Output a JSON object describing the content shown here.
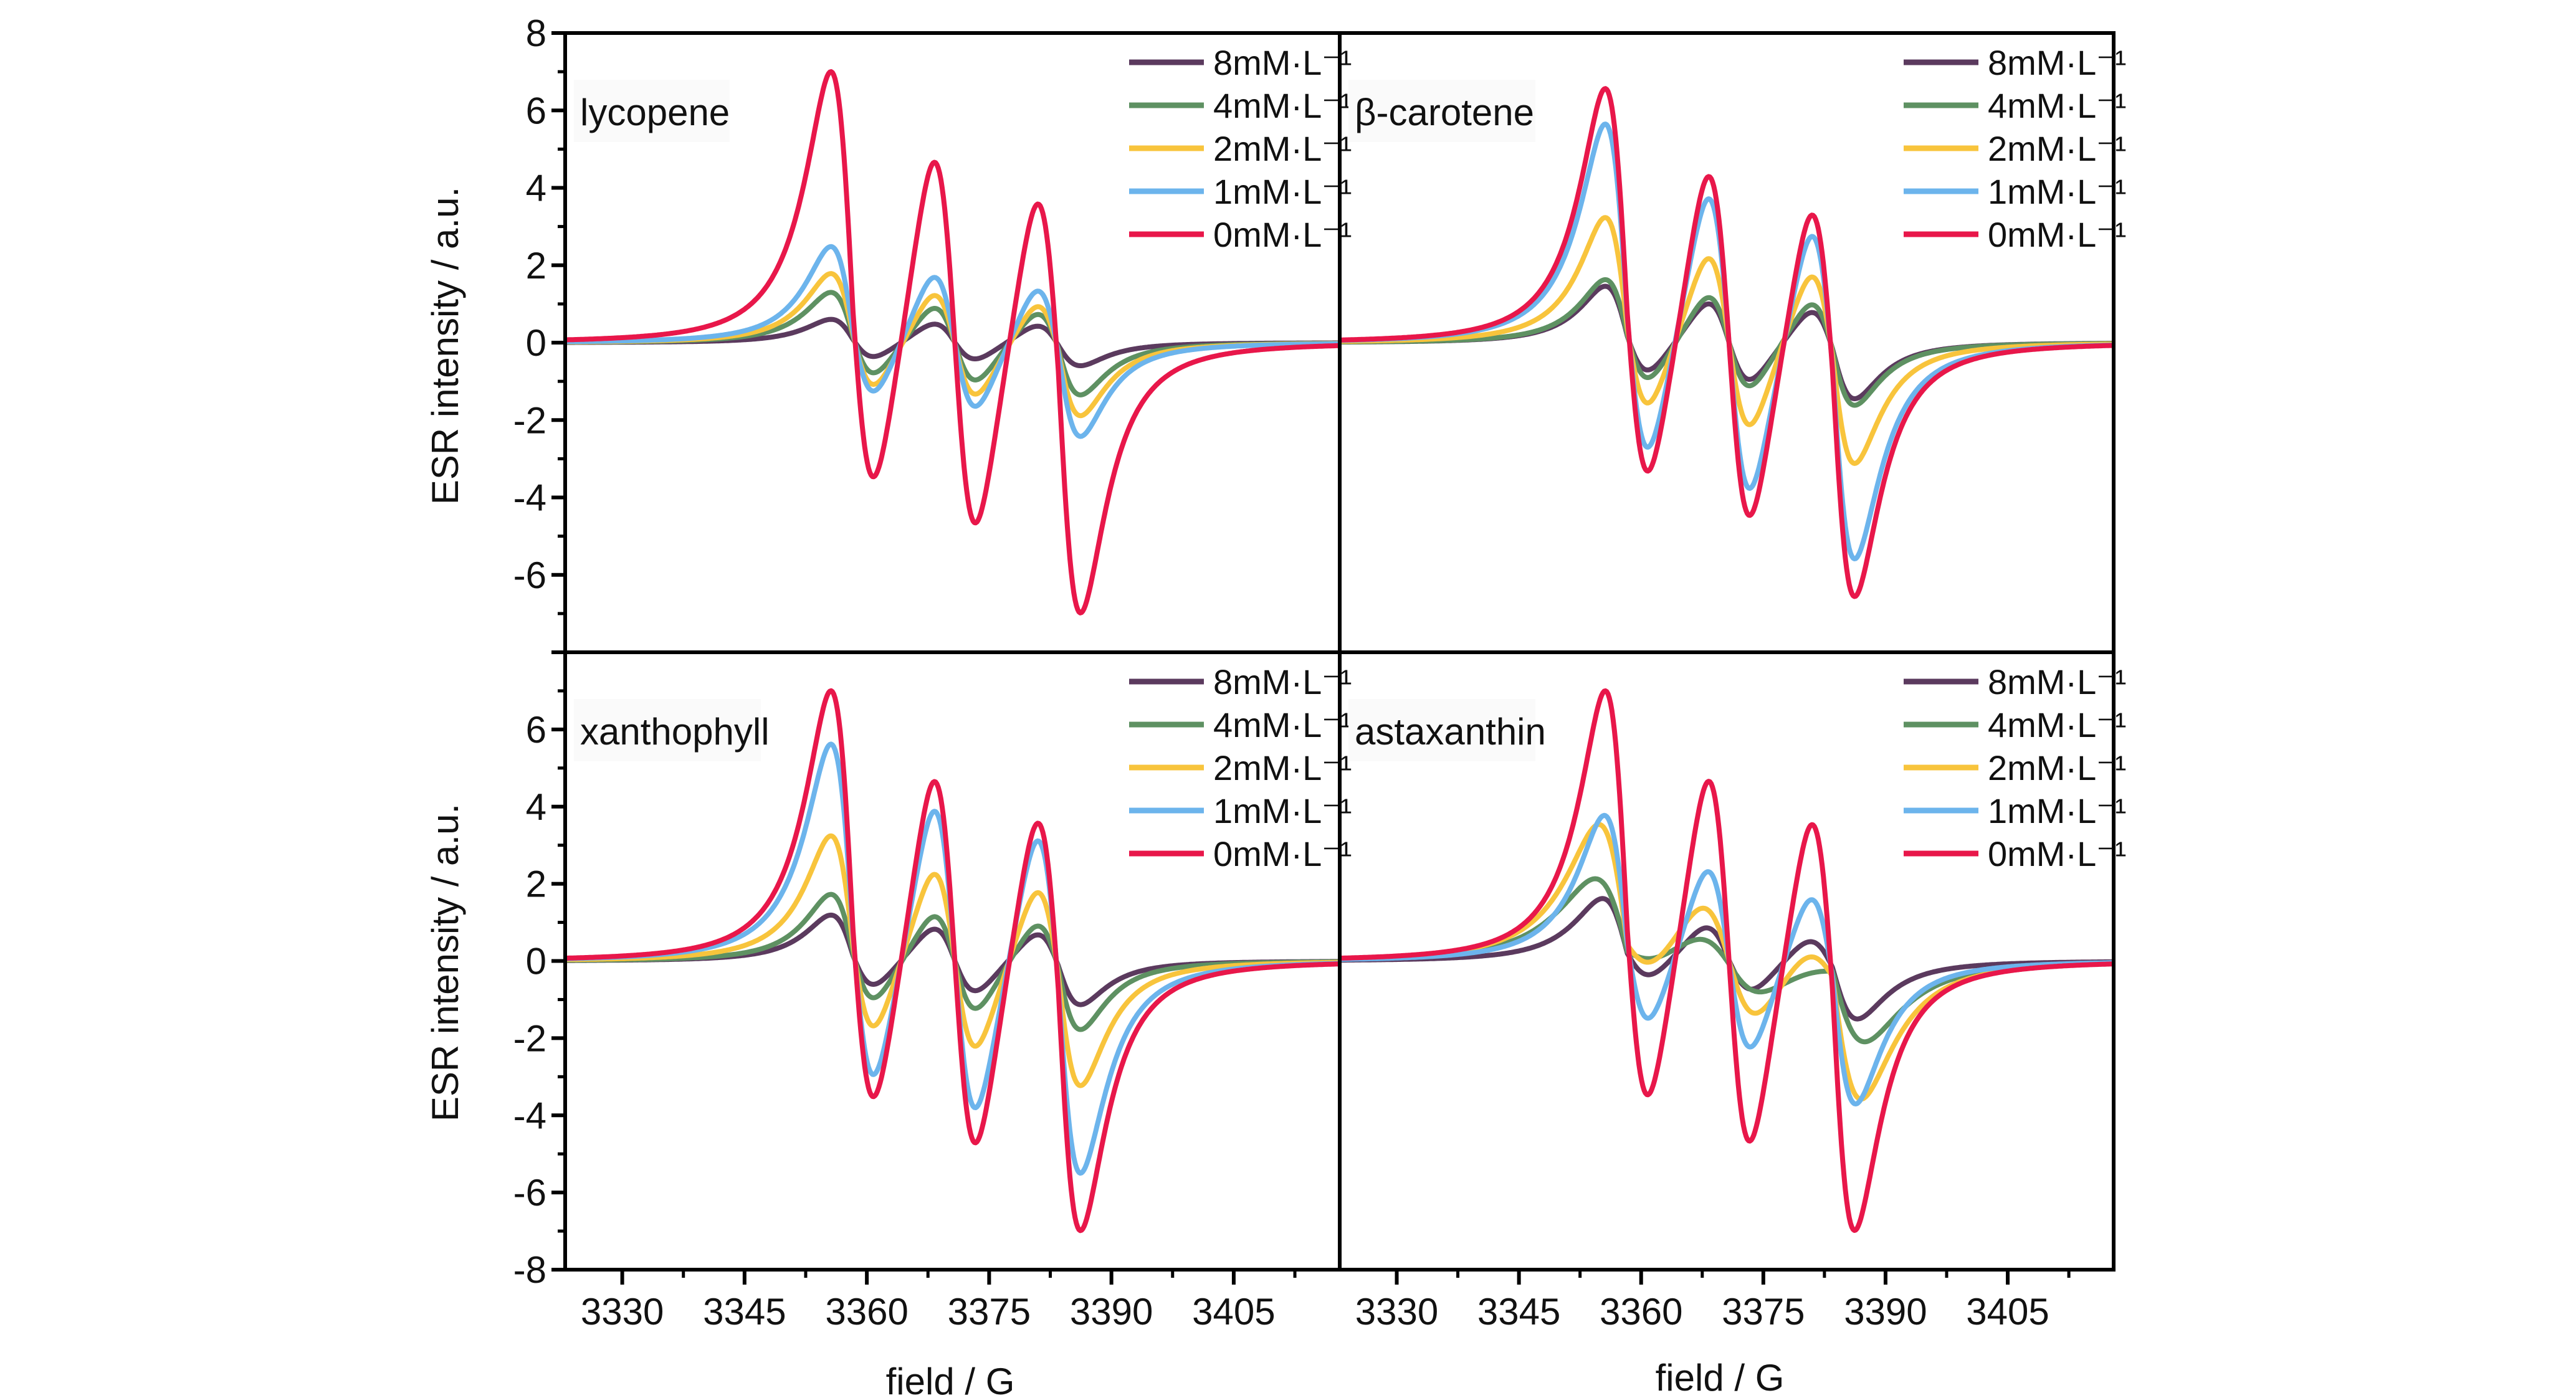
{
  "figure": {
    "ylabel": "ESR intensity / a.u.",
    "xlabel": "field / G"
  },
  "chart_data": [
    {
      "type": "line",
      "title": "lycopene",
      "xlabel": "field / G",
      "ylabel": "ESR intensity / a.u.",
      "xlim": [
        3323,
        3418
      ],
      "ylim": [
        -8,
        8
      ],
      "xticks": [
        3330,
        3345,
        3360,
        3375,
        3390,
        3405
      ],
      "yticks": [
        "8",
        "6",
        "4",
        "2",
        "0",
        "-2",
        "-4",
        "-6"
      ],
      "grid": false,
      "legend_position": "top-right",
      "line_centers_G": [
        3358.3,
        3370.8,
        3383.5
      ],
      "series": [
        {
          "name": "8mM·L⁻¹",
          "color": "#5b3a5e",
          "width_G": 4.8,
          "peaks": [
            0.55,
            0.55,
            0.55
          ],
          "troughs": [
            -0.5,
            -0.5,
            -0.55
          ]
        },
        {
          "name": "4mM·L⁻¹",
          "color": "#5e9162",
          "width_G": 4.8,
          "peaks": [
            1.2,
            1.05,
            1.0
          ],
          "troughs": [
            -1.05,
            -1.1,
            -1.25
          ]
        },
        {
          "name": "2mM·L⁻¹",
          "color": "#f8c43c",
          "width_G": 4.8,
          "peaks": [
            1.65,
            1.45,
            1.3
          ],
          "troughs": [
            -1.45,
            -1.5,
            -1.75
          ]
        },
        {
          "name": "1mM·L⁻¹",
          "color": "#6cb4ec",
          "width_G": 4.8,
          "peaks": [
            2.3,
            1.95,
            1.8
          ],
          "troughs": [
            -1.75,
            -1.9,
            -2.25
          ]
        },
        {
          "name": "0mM·L⁻¹",
          "color": "#e8174a",
          "width_G": 4.8,
          "peaks": [
            6.5,
            5.4,
            4.9
          ],
          "troughs": [
            -4.85,
            -5.35,
            -6.5
          ]
        }
      ]
    },
    {
      "type": "line",
      "title": "β-carotene",
      "xlabel": "field / G",
      "ylabel": "",
      "xlim": [
        3323,
        3418
      ],
      "ylim": [
        -8,
        8
      ],
      "xticks": [
        3330,
        3345,
        3360,
        3375,
        3390,
        3405
      ],
      "yticks": [],
      "grid": false,
      "legend_position": "top-right",
      "line_centers_G": [
        3358.3,
        3370.8,
        3383.5
      ],
      "series": [
        {
          "name": "8mM·L⁻¹",
          "color": "#5b3a5e",
          "width_G": 4.8,
          "peaks": [
            1.35,
            1.15,
            1.05
          ],
          "troughs": [
            -1.0,
            -1.1,
            -1.35
          ]
        },
        {
          "name": "4mM·L⁻¹",
          "color": "#5e9162",
          "width_G": 4.8,
          "peaks": [
            1.5,
            1.35,
            1.3
          ],
          "troughs": [
            -1.25,
            -1.3,
            -1.5
          ]
        },
        {
          "name": "2mM·L⁻¹",
          "color": "#f8c43c",
          "width_G": 4.8,
          "peaks": [
            3.0,
            2.5,
            2.3
          ],
          "troughs": [
            -2.2,
            -2.45,
            -2.9
          ]
        },
        {
          "name": "1mM·L⁻¹",
          "color": "#6cb4ec",
          "width_G": 4.8,
          "peaks": [
            5.25,
            4.3,
            3.8
          ],
          "troughs": [
            -3.8,
            -4.3,
            -5.2
          ]
        },
        {
          "name": "0mM·L⁻¹",
          "color": "#e8174a",
          "width_G": 4.8,
          "peaks": [
            6.1,
            5.0,
            4.55
          ],
          "troughs": [
            -4.6,
            -5.1,
            -6.1
          ]
        }
      ]
    },
    {
      "type": "line",
      "title": "xanthophyll",
      "xlabel": "field / G",
      "ylabel": "ESR intensity / a.u.",
      "xlim": [
        3323,
        3418
      ],
      "ylim": [
        -8,
        8
      ],
      "xticks": [
        3330,
        3345,
        3360,
        3375,
        3390,
        3405
      ],
      "yticks": [
        "6",
        "4",
        "2",
        "0",
        "-2",
        "-4",
        "-6",
        "-8"
      ],
      "grid": false,
      "legend_position": "top-right",
      "line_centers_G": [
        3358.3,
        3370.8,
        3383.5
      ],
      "series": [
        {
          "name": "8mM·L⁻¹",
          "color": "#5b3a5e",
          "width_G": 4.8,
          "peaks": [
            1.1,
            0.95,
            0.9
          ],
          "troughs": [
            -0.85,
            -0.9,
            -1.05
          ]
        },
        {
          "name": "4mM·L⁻¹",
          "color": "#5e9162",
          "width_G": 4.8,
          "peaks": [
            1.6,
            1.35,
            1.25
          ],
          "troughs": [
            -1.3,
            -1.4,
            -1.65
          ]
        },
        {
          "name": "2mM·L⁻¹",
          "color": "#f8c43c",
          "width_G": 4.8,
          "peaks": [
            3.0,
            2.6,
            2.4
          ],
          "troughs": [
            -2.35,
            -2.55,
            -3.0
          ]
        },
        {
          "name": "1mM·L⁻¹",
          "color": "#6cb4ec",
          "width_G": 4.8,
          "peaks": [
            5.2,
            4.5,
            4.2
          ],
          "troughs": [
            -4.1,
            -4.4,
            -5.1
          ]
        },
        {
          "name": "0mM·L⁻¹",
          "color": "#e8174a",
          "width_G": 4.8,
          "peaks": [
            6.5,
            5.4,
            4.9
          ],
          "troughs": [
            -4.9,
            -5.4,
            -6.5
          ]
        }
      ]
    },
    {
      "type": "line",
      "title": "astaxanthin",
      "xlabel": "field / G",
      "ylabel": "",
      "xlim": [
        3323,
        3418
      ],
      "ylim": [
        -8,
        8
      ],
      "xticks": [
        3330,
        3345,
        3360,
        3375,
        3390,
        3405
      ],
      "yticks": [],
      "grid": false,
      "legend_position": "top-right",
      "line_centers_G": [
        3358.3,
        3370.8,
        3383.5
      ],
      "series": [
        {
          "name": "8mM·L⁻¹",
          "color": "#5b3a5e",
          "width_G": 5.4,
          "peaks": [
            1.5,
            1.0,
            0.8
          ],
          "troughs": [
            -0.7,
            -0.9,
            -1.4
          ]
        },
        {
          "name": "4mM·L⁻¹",
          "color": "#5e9162",
          "width_G": 7.0,
          "peaks": [
            2.0,
            0.75,
            0.1
          ],
          "troughs": [
            -0.35,
            -0.8,
            -1.95
          ]
        },
        {
          "name": "2mM·L⁻¹",
          "color": "#f8c43c",
          "width_G": 6.2,
          "peaks": [
            3.3,
            1.6,
            0.8
          ],
          "troughs": [
            -0.75,
            -1.6,
            -3.35
          ]
        },
        {
          "name": "1mM·L⁻¹",
          "color": "#6cb4ec",
          "width_G": 5.0,
          "peaks": [
            3.5,
            2.7,
            2.3
          ],
          "troughs": [
            -2.25,
            -2.6,
            -3.45
          ]
        },
        {
          "name": "0mM·L⁻¹",
          "color": "#e8174a",
          "width_G": 4.8,
          "peaks": [
            6.5,
            5.4,
            4.85
          ],
          "troughs": [
            -4.85,
            -5.35,
            -6.5
          ]
        }
      ]
    }
  ]
}
